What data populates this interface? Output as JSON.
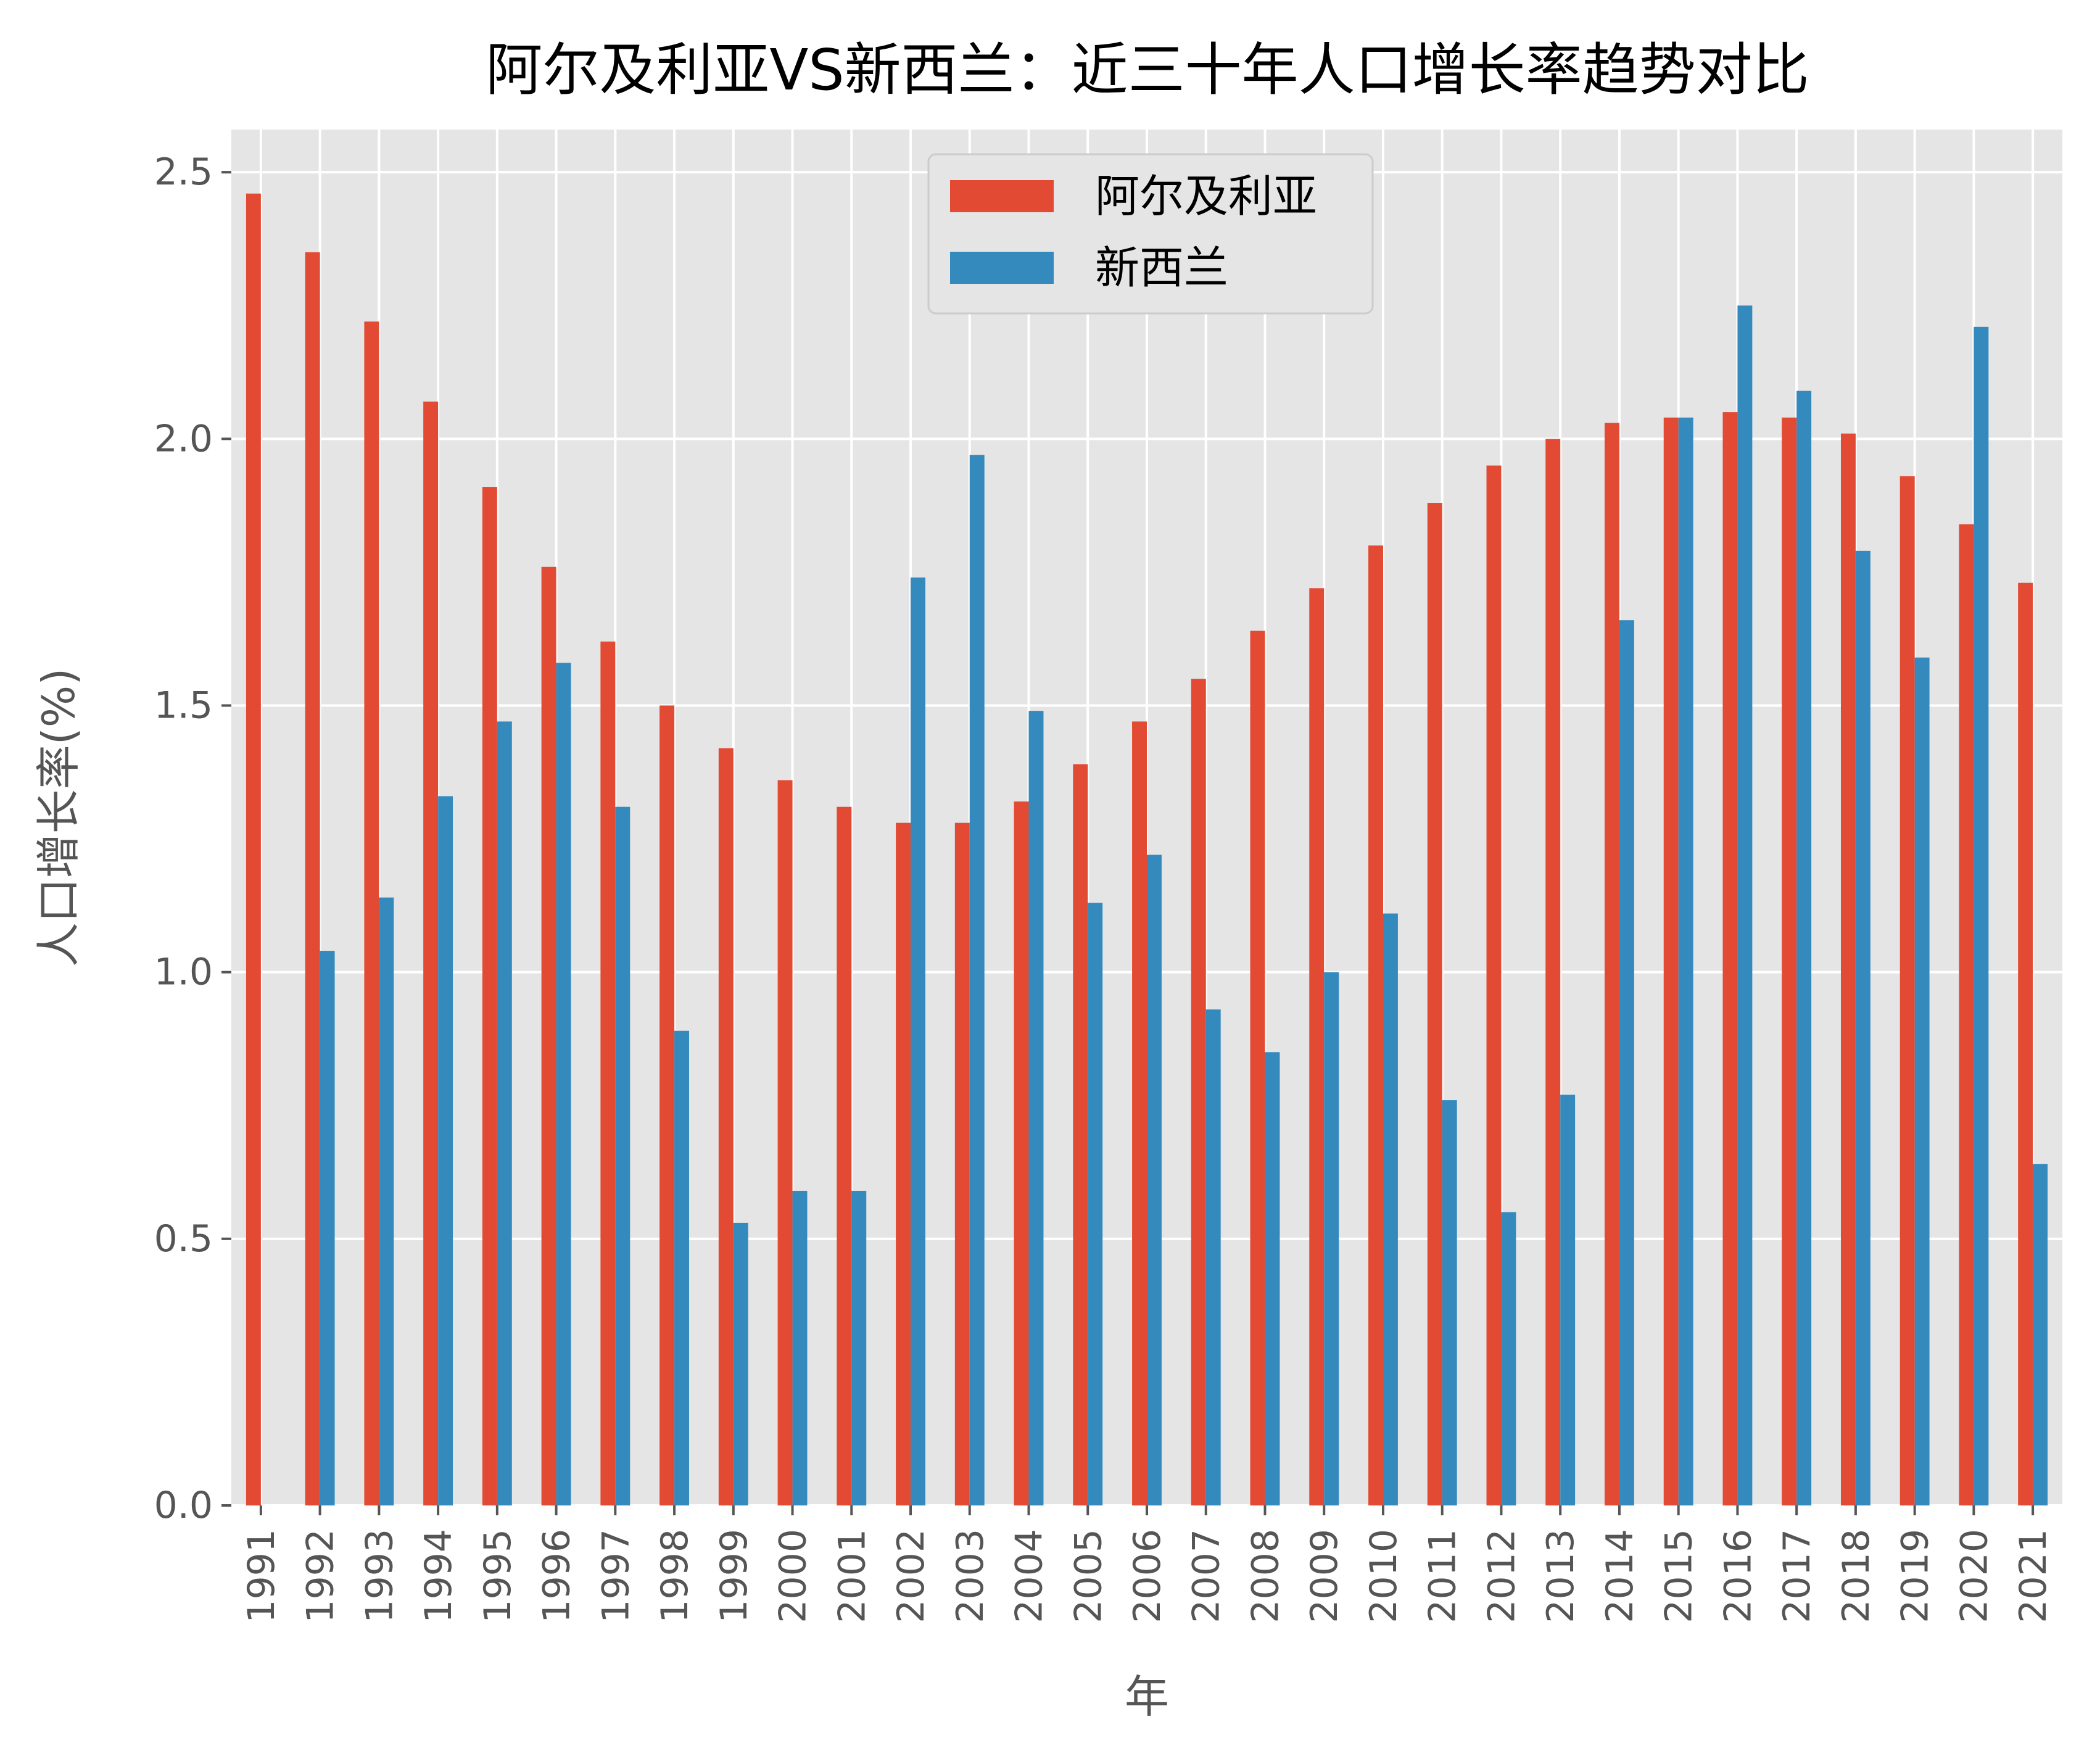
{
  "chart_data": {
    "type": "bar",
    "title": "阿尔及利亚VS新西兰：近三十年人口增长率趋势对比",
    "xlabel": "年",
    "ylabel": "人口增长率(%)",
    "ylim": [
      0,
      2.58
    ],
    "yticks": [
      "0.0",
      "0.5",
      "1.0",
      "1.5",
      "2.0",
      "2.5"
    ],
    "ytick_values": [
      0,
      0.5,
      1.0,
      1.5,
      2.0,
      2.5
    ],
    "grid": true,
    "legend_position": "top-center",
    "categories": [
      "1991",
      "1992",
      "1993",
      "1994",
      "1995",
      "1996",
      "1997",
      "1998",
      "1999",
      "2000",
      "2001",
      "2002",
      "2003",
      "2004",
      "2005",
      "2006",
      "2007",
      "2008",
      "2009",
      "2010",
      "2011",
      "2012",
      "2013",
      "2014",
      "2015",
      "2016",
      "2017",
      "2018",
      "2019",
      "2020",
      "2021"
    ],
    "series": [
      {
        "name": "阿尔及利亚",
        "color": "#E24A33",
        "values": [
          2.46,
          2.35,
          2.22,
          2.07,
          1.91,
          1.76,
          1.62,
          1.5,
          1.42,
          1.36,
          1.31,
          1.28,
          1.28,
          1.32,
          1.39,
          1.47,
          1.55,
          1.64,
          1.72,
          1.8,
          1.88,
          1.95,
          2.0,
          2.03,
          2.04,
          2.05,
          2.04,
          2.01,
          1.93,
          1.84,
          1.73
        ]
      },
      {
        "name": "新西兰",
        "color": "#348ABD",
        "values": [
          null,
          1.04,
          1.14,
          1.33,
          1.47,
          1.58,
          1.31,
          0.89,
          0.53,
          0.59,
          0.59,
          1.74,
          1.97,
          1.49,
          1.13,
          1.22,
          0.93,
          0.85,
          1.0,
          1.11,
          0.76,
          0.55,
          0.77,
          1.66,
          2.04,
          2.25,
          2.09,
          1.79,
          1.59,
          2.21,
          0.64
        ]
      }
    ]
  },
  "colors": {
    "plot_background": "#E5E5E5",
    "grid": "#FFFFFF"
  }
}
